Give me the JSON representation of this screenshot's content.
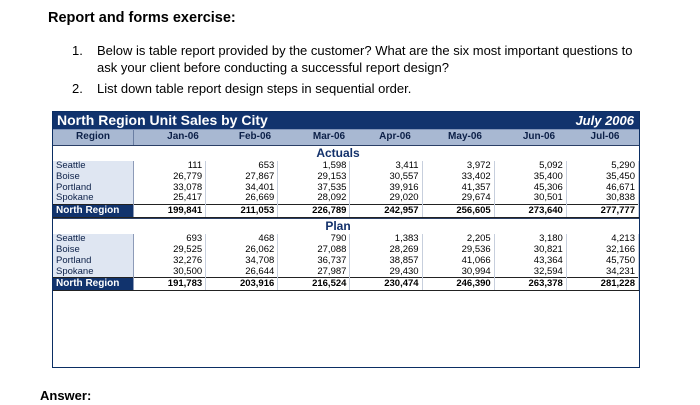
{
  "heading": "Report and forms exercise:",
  "questions": [
    {
      "num": "1.",
      "line1": "Below is table report provided by the customer? What are the six most important questions to",
      "line2": "ask your client before conducting a successful report design?"
    },
    {
      "num": "2.",
      "line1": "List down table report design steps in sequential order."
    }
  ],
  "answer_label": "Answer:",
  "report": {
    "title": "North Region Unit Sales by City",
    "date": "July 2006",
    "region_header": "Region",
    "months": [
      "Jan-06",
      "Feb-06",
      "Mar-06",
      "Apr-06",
      "May-06",
      "Jun-06",
      "Jul-06"
    ],
    "sections": [
      {
        "label": "Actuals",
        "rows": [
          {
            "city": "Seattle",
            "values": [
              "111",
              "653",
              "1,598",
              "3,411",
              "3,972",
              "5,092",
              "5,290"
            ]
          },
          {
            "city": "Boise",
            "values": [
              "26,779",
              "27,867",
              "29,153",
              "30,557",
              "33,402",
              "35,400",
              "35,450"
            ]
          },
          {
            "city": "Portland",
            "values": [
              "33,078",
              "34,401",
              "37,535",
              "39,916",
              "41,357",
              "45,306",
              "46,671"
            ]
          },
          {
            "city": "Spokane",
            "values": [
              "25,417",
              "26,669",
              "28,092",
              "29,020",
              "29,674",
              "30,501",
              "30,838"
            ]
          },
          {
            "city": "North Region",
            "values": [
              "199,841",
              "211,053",
              "226,789",
              "242,957",
              "256,605",
              "273,640",
              "277,777"
            ]
          }
        ]
      },
      {
        "label": "Plan",
        "rows": [
          {
            "city": "Seattle",
            "values": [
              "693",
              "468",
              "790",
              "1,383",
              "2,205",
              "3,180",
              "4,213"
            ]
          },
          {
            "city": "Boise",
            "values": [
              "29,525",
              "26,062",
              "27,088",
              "28,269",
              "29,536",
              "30,821",
              "32,166"
            ]
          },
          {
            "city": "Portland",
            "values": [
              "32,276",
              "34,708",
              "36,737",
              "38,857",
              "41,066",
              "43,364",
              "45,750"
            ]
          },
          {
            "city": "Spokane",
            "values": [
              "30,500",
              "26,644",
              "27,987",
              "29,430",
              "30,994",
              "32,594",
              "34,231"
            ]
          },
          {
            "city": "North Region",
            "values": [
              "191,783",
              "203,916",
              "216,524",
              "230,474",
              "246,390",
              "263,378",
              "281,228"
            ]
          }
        ]
      }
    ]
  }
}
